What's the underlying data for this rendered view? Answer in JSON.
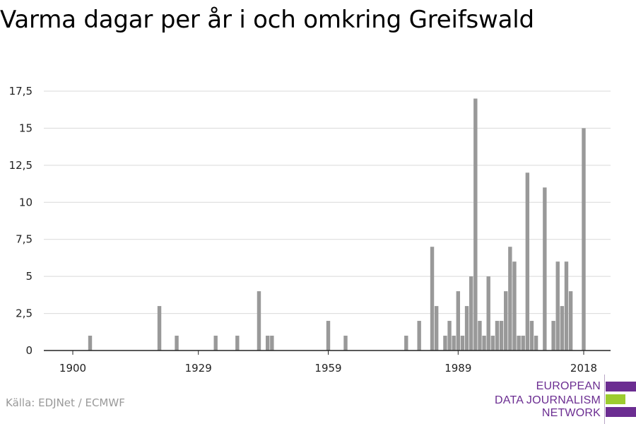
{
  "title": "Varma dagar per år i och omkring Greifswald",
  "source": "Källa: EDJNet / ECMWF",
  "logo": {
    "lines": [
      "EUROPEAN",
      "DATA JOURNALISM",
      "NETWORK"
    ],
    "colors": {
      "purple": "#6b2d91",
      "green": "#9ccc2f"
    }
  },
  "chart_data": {
    "type": "bar",
    "title": "Varma dagar per år i och omkring Greifswald",
    "xlabel": "",
    "ylabel": "",
    "xlim": [
      1900,
      2018
    ],
    "ylim": [
      0,
      17.5
    ],
    "x_ticks": [
      1900,
      1929,
      1959,
      1989,
      2018
    ],
    "x_tick_labels": [
      "1900",
      "1929",
      "1959",
      "1989",
      "2018"
    ],
    "y_ticks": [
      0,
      2.5,
      5,
      7.5,
      10,
      12.5,
      15,
      17.5
    ],
    "y_tick_labels": [
      "0",
      "2,5",
      "5",
      "7,5",
      "10",
      "12,5",
      "15",
      "17,5"
    ],
    "grid": true,
    "bar_color": "#999999",
    "x": [
      1904,
      1920,
      1924,
      1933,
      1938,
      1943,
      1945,
      1946,
      1959,
      1963,
      1977,
      1980,
      1983,
      1984,
      1986,
      1987,
      1988,
      1989,
      1990,
      1991,
      1992,
      1993,
      1994,
      1995,
      1996,
      1997,
      1998,
      1999,
      2000,
      2001,
      2002,
      2003,
      2004,
      2005,
      2006,
      2007,
      2009,
      2011,
      2012,
      2013,
      2014,
      2015,
      2018
    ],
    "values": [
      1,
      3,
      1,
      1,
      1,
      4,
      1,
      1,
      2,
      1,
      1,
      2,
      7,
      3,
      1,
      2,
      1,
      4,
      1,
      3,
      5,
      17,
      2,
      1,
      5,
      1,
      2,
      2,
      4,
      7,
      6,
      1,
      1,
      12,
      2,
      1,
      11,
      2,
      6,
      3,
      6,
      4,
      15
    ]
  }
}
